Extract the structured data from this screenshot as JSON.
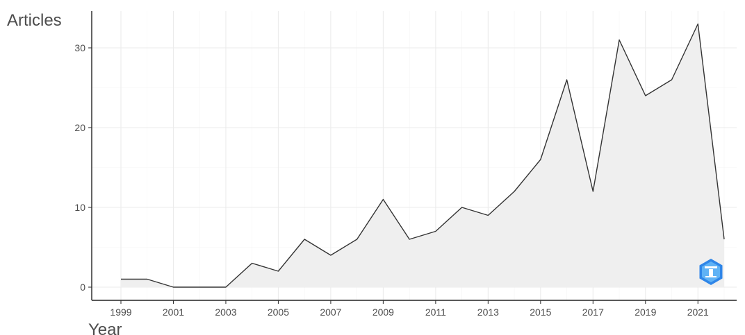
{
  "chart_data": {
    "type": "area",
    "title": "",
    "xlabel": "Year",
    "ylabel": "Articles",
    "x": [
      1999,
      2000,
      2001,
      2002,
      2003,
      2004,
      2005,
      2006,
      2007,
      2008,
      2009,
      2010,
      2011,
      2012,
      2013,
      2014,
      2015,
      2016,
      2017,
      2018,
      2019,
      2020,
      2021,
      2022
    ],
    "series": [
      {
        "values": [
          1,
          1,
          0,
          0,
          0,
          3,
          2,
          6,
          4,
          6,
          11,
          6,
          7,
          10,
          9,
          12,
          16,
          26,
          12,
          31,
          24,
          26,
          33,
          6
        ]
      }
    ],
    "xticks": [
      "1999",
      "2001",
      "2003",
      "2005",
      "2007",
      "2009",
      "2011",
      "2013",
      "2015",
      "2017",
      "2019",
      "2021"
    ],
    "yticks": [
      "0",
      "10",
      "20",
      "30"
    ],
    "xlim": [
      1999,
      2022
    ],
    "ylim": [
      0,
      33
    ],
    "grid": true,
    "legend": "none",
    "colors": {
      "line": "#333333",
      "fill": "#efefef",
      "grid": "#ebebeb",
      "watermark": "#2f86e8"
    },
    "watermark_icon": "hexagon-logo-icon"
  }
}
